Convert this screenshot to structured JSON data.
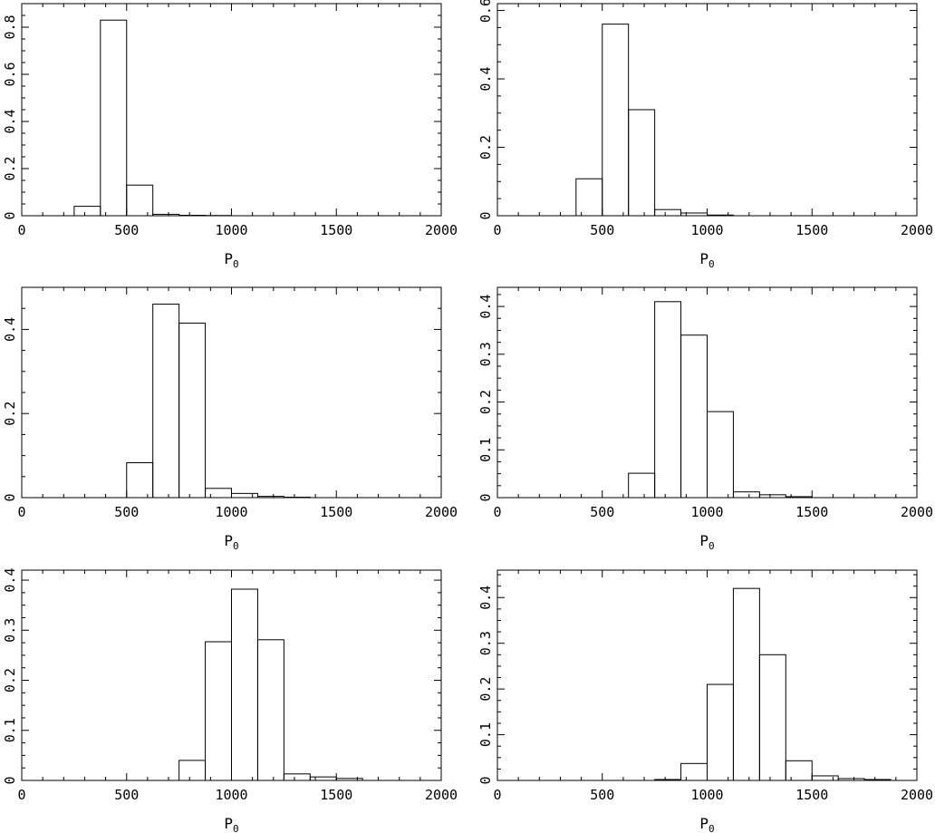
{
  "chart_data": [
    {
      "type": "bar",
      "xlabel": "P",
      "xlabel_sub": "0",
      "xlim": [
        0,
        2000
      ],
      "ylim": [
        0,
        0.9
      ],
      "yticks": [
        0,
        0.2,
        0.4,
        0.6,
        0.8
      ],
      "bin_edges": [
        250,
        375,
        500,
        625,
        750,
        875,
        1000
      ],
      "values": [
        0.04,
        0.83,
        0.13,
        0.006,
        0.002,
        0.001
      ]
    },
    {
      "type": "bar",
      "xlabel": "P",
      "xlabel_sub": "0",
      "xlim": [
        0,
        2000
      ],
      "ylim": [
        0,
        0.62
      ],
      "yticks": [
        0,
        0.2,
        0.4,
        0.6
      ],
      "bin_edges": [
        375,
        500,
        625,
        750,
        875,
        1000,
        1125
      ],
      "values": [
        0.108,
        0.56,
        0.31,
        0.018,
        0.008,
        0.002
      ]
    },
    {
      "type": "bar",
      "xlabel": "P",
      "xlabel_sub": "0",
      "xlim": [
        0,
        2000
      ],
      "ylim": [
        0,
        0.5
      ],
      "yticks": [
        0,
        0.2,
        0.4
      ],
      "bin_edges": [
        500,
        625,
        750,
        875,
        1000,
        1125,
        1250,
        1375
      ],
      "values": [
        0.083,
        0.46,
        0.415,
        0.022,
        0.01,
        0.003,
        0.001
      ]
    },
    {
      "type": "bar",
      "xlabel": "P",
      "xlabel_sub": "0",
      "xlim": [
        0,
        2000
      ],
      "ylim": [
        0,
        0.44
      ],
      "yticks": [
        0,
        0.1,
        0.2,
        0.3,
        0.4
      ],
      "bin_edges": [
        625,
        750,
        875,
        1000,
        1125,
        1250,
        1375,
        1500
      ],
      "values": [
        0.051,
        0.41,
        0.34,
        0.18,
        0.012,
        0.006,
        0.002
      ]
    },
    {
      "type": "bar",
      "xlabel": "P",
      "xlabel_sub": "0",
      "xlim": [
        0,
        2000
      ],
      "ylim": [
        0,
        0.42
      ],
      "yticks": [
        0,
        0.1,
        0.2,
        0.3,
        0.4
      ],
      "bin_edges": [
        750,
        875,
        1000,
        1125,
        1250,
        1375,
        1500,
        1625
      ],
      "values": [
        0.04,
        0.277,
        0.382,
        0.281,
        0.013,
        0.007,
        0.004
      ]
    },
    {
      "type": "bar",
      "xlabel": "P",
      "xlabel_sub": "0",
      "xlim": [
        0,
        2000
      ],
      "ylim": [
        0,
        0.46
      ],
      "yticks": [
        0,
        0.1,
        0.2,
        0.3,
        0.4
      ],
      "bin_edges": [
        750,
        875,
        1000,
        1125,
        1250,
        1375,
        1500,
        1625,
        1750,
        1875
      ],
      "values": [
        0.002,
        0.037,
        0.21,
        0.42,
        0.275,
        0.043,
        0.01,
        0.004,
        0.002
      ]
    }
  ]
}
